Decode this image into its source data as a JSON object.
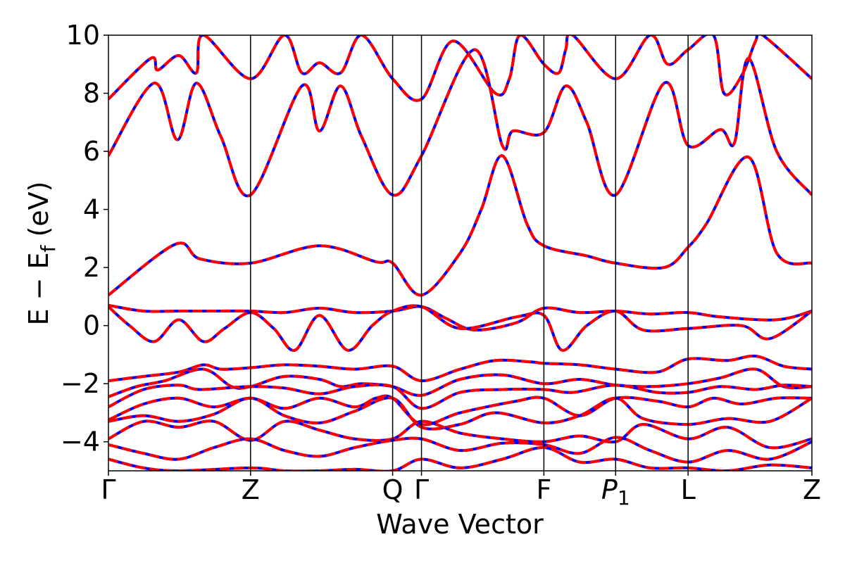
{
  "chart_data": {
    "type": "line",
    "xlabel": "Wave Vector",
    "ylabel_main": "E − E",
    "ylabel_sub": "f",
    "ylabel_unit": " (eV)",
    "ylim": [
      -5,
      10
    ],
    "yticks": [
      -4,
      -2,
      0,
      2,
      4,
      6,
      8,
      10
    ],
    "ytick_labels": [
      "−4",
      "−2",
      "0",
      "2",
      "4",
      "6",
      "8",
      "10"
    ],
    "grid": false,
    "x_range": [
      0,
      1
    ],
    "kpath": [
      {
        "label": "Γ",
        "pos": 0.0
      },
      {
        "label": "Z",
        "pos": 0.202
      },
      {
        "label": "Q",
        "pos": 0.404
      },
      {
        "label": "Γ",
        "pos": 0.445
      },
      {
        "label": "F",
        "pos": 0.619
      },
      {
        "label": "P",
        "sub": "1",
        "italic": true,
        "pos": 0.721
      },
      {
        "label": "L",
        "pos": 0.824
      },
      {
        "label": "Z",
        "pos": 1.0
      }
    ],
    "series_style": [
      {
        "color": "#0000ff",
        "style": "solid"
      },
      {
        "color": "#ff0000",
        "style": "dashed"
      }
    ],
    "bands": [
      [
        [
          0,
          7.8
        ],
        [
          0.06,
          9.2
        ],
        [
          0.07,
          8.8
        ],
        [
          0.1,
          9.3
        ],
        [
          0.125,
          8.7
        ],
        [
          0.135,
          10
        ],
        [
          0.202,
          8.5
        ],
        [
          0.25,
          10
        ],
        [
          0.275,
          8.7
        ],
        [
          0.3,
          9.05
        ],
        [
          0.33,
          8.7
        ],
        [
          0.36,
          10
        ],
        [
          0.404,
          8.5
        ],
        [
          0.445,
          7.8
        ],
        [
          0.49,
          9.8
        ],
        [
          0.55,
          8
        ],
        [
          0.57,
          8.5
        ],
        [
          0.585,
          10
        ],
        [
          0.619,
          9
        ],
        [
          0.64,
          8.7
        ],
        [
          0.65,
          9.5
        ],
        [
          0.66,
          10
        ],
        [
          0.721,
          8.5
        ],
        [
          0.77,
          10
        ],
        [
          0.795,
          9
        ],
        [
          0.824,
          9.5
        ],
        [
          0.86,
          10
        ],
        [
          0.875,
          8
        ],
        [
          0.9,
          8.6
        ],
        [
          0.92,
          9.8
        ],
        [
          0.93,
          10
        ],
        [
          1,
          8.5
        ]
      ],
      [
        [
          0,
          5.85
        ],
        [
          0.065,
          8.35
        ],
        [
          0.098,
          6.4
        ],
        [
          0.125,
          8.35
        ],
        [
          0.16,
          6.5
        ],
        [
          0.202,
          4.5
        ],
        [
          0.275,
          8.25
        ],
        [
          0.3,
          6.7
        ],
        [
          0.33,
          8.25
        ],
        [
          0.36,
          6.5
        ],
        [
          0.404,
          4.5
        ],
        [
          0.445,
          5.85
        ],
        [
          0.52,
          9.5
        ],
        [
          0.56,
          6.2
        ],
        [
          0.575,
          6.7
        ],
        [
          0.619,
          6.65
        ],
        [
          0.65,
          8.25
        ],
        [
          0.68,
          7
        ],
        [
          0.721,
          4.5
        ],
        [
          0.79,
          8.35
        ],
        [
          0.824,
          6.2
        ],
        [
          0.87,
          6.75
        ],
        [
          0.89,
          6.3
        ],
        [
          0.91,
          9.2
        ],
        [
          0.95,
          6
        ],
        [
          1,
          4.5
        ]
      ],
      [
        [
          0,
          1.05
        ],
        [
          0.095,
          2.8
        ],
        [
          0.13,
          2.3
        ],
        [
          0.202,
          2.15
        ],
        [
          0.3,
          2.75
        ],
        [
          0.38,
          2.2
        ],
        [
          0.404,
          2.15
        ],
        [
          0.445,
          1.05
        ],
        [
          0.5,
          2.5
        ],
        [
          0.53,
          4
        ],
        [
          0.56,
          5.85
        ],
        [
          0.595,
          3.5
        ],
        [
          0.619,
          2.75
        ],
        [
          0.68,
          2.4
        ],
        [
          0.721,
          2.15
        ],
        [
          0.79,
          2
        ],
        [
          0.824,
          2.7
        ],
        [
          0.85,
          3.5
        ],
        [
          0.91,
          5.8
        ],
        [
          0.95,
          2.5
        ],
        [
          1,
          2.15
        ]
      ],
      [
        [
          0,
          0.7
        ],
        [
          0.05,
          0.5
        ],
        [
          0.1,
          0.5
        ],
        [
          0.15,
          0.5
        ],
        [
          0.202,
          0.5
        ],
        [
          0.25,
          0.45
        ],
        [
          0.3,
          0.6
        ],
        [
          0.35,
          0.45
        ],
        [
          0.404,
          0.5
        ],
        [
          0.445,
          0.65
        ],
        [
          0.48,
          0.25
        ],
        [
          0.52,
          -0.15
        ],
        [
          0.58,
          0.1
        ],
        [
          0.619,
          0.6
        ],
        [
          0.67,
          0.45
        ],
        [
          0.721,
          0.5
        ],
        [
          0.77,
          0.4
        ],
        [
          0.824,
          0.45
        ],
        [
          0.87,
          0.3
        ],
        [
          0.95,
          0.2
        ],
        [
          1,
          0.5
        ]
      ],
      [
        [
          0,
          0.65
        ],
        [
          0.03,
          0
        ],
        [
          0.065,
          -0.55
        ],
        [
          0.1,
          0.2
        ],
        [
          0.135,
          -0.55
        ],
        [
          0.165,
          -0.1
        ],
        [
          0.202,
          0.45
        ],
        [
          0.235,
          -0.1
        ],
        [
          0.265,
          -0.85
        ],
        [
          0.3,
          0.35
        ],
        [
          0.34,
          -0.85
        ],
        [
          0.375,
          0
        ],
        [
          0.404,
          0.5
        ],
        [
          0.445,
          0.65
        ],
        [
          0.5,
          -0.1
        ],
        [
          0.58,
          0.3
        ],
        [
          0.619,
          0.35
        ],
        [
          0.645,
          -0.85
        ],
        [
          0.68,
          0
        ],
        [
          0.721,
          0.5
        ],
        [
          0.76,
          -0.15
        ],
        [
          0.824,
          -0.1
        ],
        [
          0.9,
          0
        ],
        [
          0.94,
          -0.45
        ],
        [
          1,
          0.5
        ]
      ],
      [
        [
          0,
          -1.9
        ],
        [
          0.05,
          -1.75
        ],
        [
          0.1,
          -1.6
        ],
        [
          0.135,
          -1.35
        ],
        [
          0.16,
          -1.5
        ],
        [
          0.202,
          -1.45
        ],
        [
          0.25,
          -1.35
        ],
        [
          0.3,
          -1.4
        ],
        [
          0.35,
          -1.5
        ],
        [
          0.404,
          -1.4
        ],
        [
          0.445,
          -1.9
        ],
        [
          0.5,
          -1.5
        ],
        [
          0.55,
          -1.2
        ],
        [
          0.6,
          -1.25
        ],
        [
          0.619,
          -1.3
        ],
        [
          0.67,
          -1.35
        ],
        [
          0.721,
          -1.5
        ],
        [
          0.78,
          -1.6
        ],
        [
          0.824,
          -1.15
        ],
        [
          0.88,
          -1.2
        ],
        [
          0.92,
          -1.05
        ],
        [
          0.96,
          -1.4
        ],
        [
          1,
          -1.5
        ]
      ],
      [
        [
          0,
          -2.45
        ],
        [
          0.04,
          -2.1
        ],
        [
          0.08,
          -1.9
        ],
        [
          0.135,
          -1.5
        ],
        [
          0.175,
          -2.1
        ],
        [
          0.202,
          -2.1
        ],
        [
          0.25,
          -1.75
        ],
        [
          0.3,
          -1.85
        ],
        [
          0.33,
          -2.1
        ],
        [
          0.36,
          -2
        ],
        [
          0.404,
          -2.1
        ],
        [
          0.445,
          -2.4
        ],
        [
          0.5,
          -1.85
        ],
        [
          0.56,
          -1.7
        ],
        [
          0.619,
          -2
        ],
        [
          0.67,
          -1.85
        ],
        [
          0.721,
          -2.05
        ],
        [
          0.77,
          -2.1
        ],
        [
          0.824,
          -2
        ],
        [
          0.87,
          -1.8
        ],
        [
          0.92,
          -1.5
        ],
        [
          0.96,
          -2.1
        ],
        [
          1,
          -2.1
        ]
      ],
      [
        [
          0,
          -2.8
        ],
        [
          0.05,
          -2.2
        ],
        [
          0.1,
          -2.05
        ],
        [
          0.13,
          -2.2
        ],
        [
          0.2,
          -2.1
        ],
        [
          0.25,
          -2.15
        ],
        [
          0.3,
          -2.35
        ],
        [
          0.35,
          -2.1
        ],
        [
          0.404,
          -2.1
        ],
        [
          0.445,
          -2.85
        ],
        [
          0.5,
          -2.3
        ],
        [
          0.56,
          -2.2
        ],
        [
          0.619,
          -2.2
        ],
        [
          0.66,
          -2.3
        ],
        [
          0.721,
          -2.05
        ],
        [
          0.78,
          -2.3
        ],
        [
          0.824,
          -2.3
        ],
        [
          0.87,
          -2.1
        ],
        [
          0.92,
          -2.2
        ],
        [
          0.96,
          -2.05
        ],
        [
          1,
          -2.1
        ]
      ],
      [
        [
          0,
          -3.25
        ],
        [
          0.05,
          -2.7
        ],
        [
          0.1,
          -2.5
        ],
        [
          0.15,
          -2.8
        ],
        [
          0.202,
          -2.5
        ],
        [
          0.25,
          -2.85
        ],
        [
          0.3,
          -2.5
        ],
        [
          0.35,
          -2.8
        ],
        [
          0.38,
          -2.5
        ],
        [
          0.404,
          -2.5
        ],
        [
          0.445,
          -3.4
        ],
        [
          0.5,
          -3
        ],
        [
          0.58,
          -2.6
        ],
        [
          0.619,
          -2.5
        ],
        [
          0.67,
          -3.1
        ],
        [
          0.721,
          -2.5
        ],
        [
          0.78,
          -2.6
        ],
        [
          0.824,
          -2.8
        ],
        [
          0.86,
          -2.5
        ],
        [
          0.9,
          -2.7
        ],
        [
          0.95,
          -2.5
        ],
        [
          1,
          -2.5
        ]
      ],
      [
        [
          0,
          -3.3
        ],
        [
          0.05,
          -3.1
        ],
        [
          0.1,
          -3.3
        ],
        [
          0.15,
          -3.05
        ],
        [
          0.202,
          -2.5
        ],
        [
          0.25,
          -3.1
        ],
        [
          0.3,
          -3.35
        ],
        [
          0.35,
          -2.95
        ],
        [
          0.404,
          -2.5
        ],
        [
          0.445,
          -3.5
        ],
        [
          0.5,
          -3.4
        ],
        [
          0.55,
          -3
        ],
        [
          0.619,
          -3.35
        ],
        [
          0.67,
          -3.1
        ],
        [
          0.721,
          -2.5
        ],
        [
          0.76,
          -3.2
        ],
        [
          0.824,
          -3.4
        ],
        [
          0.88,
          -3.2
        ],
        [
          0.94,
          -3.3
        ],
        [
          1,
          -2.5
        ]
      ],
      [
        [
          0,
          -3.9
        ],
        [
          0.05,
          -3.3
        ],
        [
          0.1,
          -3.5
        ],
        [
          0.15,
          -3.3
        ],
        [
          0.202,
          -3.95
        ],
        [
          0.25,
          -3.3
        ],
        [
          0.3,
          -3.6
        ],
        [
          0.35,
          -3.9
        ],
        [
          0.404,
          -3.9
        ],
        [
          0.445,
          -3.3
        ],
        [
          0.5,
          -3.7
        ],
        [
          0.56,
          -3.9
        ],
        [
          0.619,
          -4
        ],
        [
          0.67,
          -3.8
        ],
        [
          0.721,
          -4
        ],
        [
          0.76,
          -3.4
        ],
        [
          0.824,
          -3.9
        ],
        [
          0.88,
          -3.5
        ],
        [
          0.94,
          -4.2
        ],
        [
          1,
          -3.9
        ]
      ],
      [
        [
          0,
          -4.1
        ],
        [
          0.05,
          -4.4
        ],
        [
          0.1,
          -4.6
        ],
        [
          0.15,
          -4.2
        ],
        [
          0.202,
          -3.9
        ],
        [
          0.25,
          -4.3
        ],
        [
          0.3,
          -4.5
        ],
        [
          0.35,
          -4.2
        ],
        [
          0.404,
          -3.95
        ],
        [
          0.445,
          -3.9
        ],
        [
          0.5,
          -4.3
        ],
        [
          0.56,
          -4.05
        ],
        [
          0.619,
          -4.1
        ],
        [
          0.67,
          -4.4
        ],
        [
          0.721,
          -3.85
        ],
        [
          0.77,
          -4.3
        ],
        [
          0.824,
          -4.7
        ],
        [
          0.88,
          -4.3
        ],
        [
          0.94,
          -4.6
        ],
        [
          1,
          -4
        ]
      ],
      [
        [
          0,
          -4.6
        ],
        [
          0.05,
          -4.9
        ],
        [
          0.1,
          -5
        ],
        [
          0.202,
          -4.9
        ],
        [
          0.25,
          -5
        ],
        [
          0.3,
          -5
        ],
        [
          0.35,
          -4.95
        ],
        [
          0.404,
          -5
        ],
        [
          0.445,
          -4.6
        ],
        [
          0.5,
          -4.9
        ],
        [
          0.56,
          -4.6
        ],
        [
          0.619,
          -4.2
        ],
        [
          0.67,
          -4.7
        ],
        [
          0.721,
          -4.6
        ],
        [
          0.77,
          -4.9
        ],
        [
          0.824,
          -4.9
        ],
        [
          0.88,
          -5
        ],
        [
          0.94,
          -4.8
        ],
        [
          1,
          -4.9
        ]
      ]
    ]
  }
}
